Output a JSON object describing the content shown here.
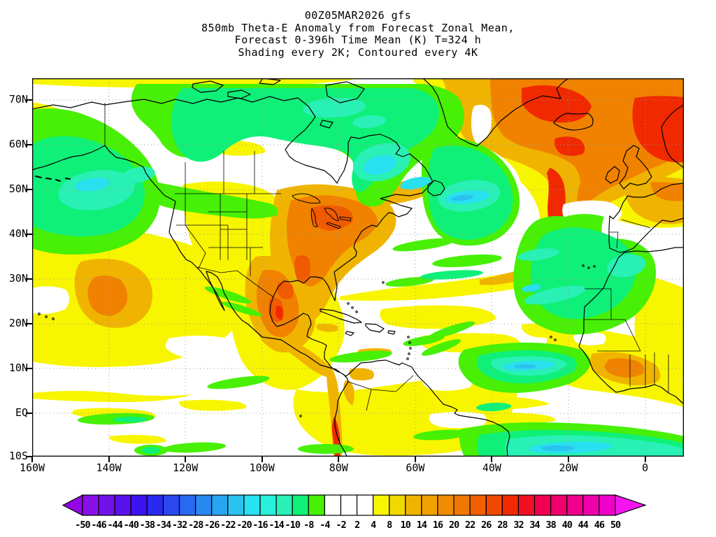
{
  "title": {
    "line1": "00Z05MAR2026 gfs",
    "line2": "850mb Theta-E Anomaly from Forecast Zonal Mean,",
    "line3": "Forecast 0-396h Time Mean (K) T=324 h",
    "line4": "Shading every 2K; Contoured every 4K"
  },
  "map": {
    "lat_labels": [
      "70N",
      "60N",
      "50N",
      "40N",
      "30N",
      "20N",
      "10N",
      "EQ",
      "10S"
    ],
    "lon_labels": [
      "160W",
      "140W",
      "120W",
      "100W",
      "80W",
      "60W",
      "40W",
      "20W",
      "0"
    ]
  },
  "colorbar": {
    "labels": [
      "-50",
      "-46",
      "-44",
      "-40",
      "-38",
      "-34",
      "-32",
      "-28",
      "-26",
      "-22",
      "-20",
      "-16",
      "-14",
      "-10",
      "-8",
      "-4",
      "-2",
      "2",
      "4",
      "8",
      "10",
      "14",
      "16",
      "20",
      "22",
      "26",
      "28",
      "32",
      "34",
      "38",
      "40",
      "44",
      "46",
      "50"
    ],
    "colors": [
      "#9406e6",
      "#8a0fe6",
      "#7211e8",
      "#5812ec",
      "#3c13f0",
      "#2929f0",
      "#2948f0",
      "#2968f0",
      "#2987f0",
      "#29a5f0",
      "#29c3f0",
      "#29e1f0",
      "#29f0dc",
      "#29f0b4",
      "#0ff078",
      "#47f005",
      "#ffffff",
      "#ffffff",
      "#ffffff",
      "#f8f500",
      "#f0d800",
      "#f0b400",
      "#f0a000",
      "#f08c00",
      "#f07800",
      "#f06000",
      "#f04800",
      "#f02900",
      "#f00f24",
      "#f00052",
      "#f0006e",
      "#f0008c",
      "#f000aa",
      "#f000c8",
      "#f514f0"
    ]
  },
  "chart_data": {
    "type": "heatmap",
    "title": "00Z05MAR2026 gfs — 850mb Theta-E Anomaly from Forecast Zonal Mean, Forecast 0-396h Time Mean (K) T=324 h — Shading every 2K; Contoured every 4K",
    "model": "gfs",
    "init_time": "00Z05MAR2026",
    "field": "850mb Theta-E Anomaly from Forecast Zonal Mean",
    "units": "K",
    "time_mean": "Forecast 0-396h",
    "tau": "T=324 h",
    "shading_interval_K": 2,
    "contour_interval_K": 4,
    "projection": "latlon",
    "lat_ticks": [
      "70N",
      "60N",
      "50N",
      "40N",
      "30N",
      "20N",
      "10N",
      "EQ",
      "10S"
    ],
    "lon_ticks": [
      "160W",
      "140W",
      "120W",
      "100W",
      "80W",
      "60W",
      "40W",
      "20W",
      "0"
    ],
    "lat_range": [
      "10S",
      "75N"
    ],
    "lon_range": [
      "160W",
      "10E"
    ],
    "grid": "dotted gray every 10 lat / 20 lon",
    "colorbar_levels": [
      -50,
      -46,
      -44,
      -40,
      -38,
      -34,
      -32,
      -28,
      -26,
      -22,
      -20,
      -16,
      -14,
      -10,
      -8,
      -4,
      -2,
      2,
      4,
      8,
      10,
      14,
      16,
      20,
      22,
      26,
      28,
      32,
      34,
      38,
      40,
      44,
      46,
      50
    ],
    "features": [
      {
        "region": "Alaska, western & central Canada, Hudson Bay",
        "anomaly_K": "-6 to -12",
        "shade": "green"
      },
      {
        "region": "Gulf of Alaska / Northeast Pacific",
        "anomaly_K": "-8 to -16",
        "shade": "green-teal with cyan core"
      },
      {
        "region": "Labrador / NE Quebec",
        "anomaly_K": "-12 to -18",
        "shade": "teal-cyan patch"
      },
      {
        "region": "Eastern US, Great Lakes, Northeast US",
        "anomaly_K": "+8 to +20",
        "shade": "orange with red-orange core"
      },
      {
        "region": "Gulf of Mexico and Mexico",
        "anomaly_K": "+8 to +20",
        "shade": "orange"
      },
      {
        "region": "North Atlantic from Greenland/Iceland to Scandinavia",
        "anomaly_K": "+12 to +32",
        "shade": "orange-red, red max near Norway and north of Iceland"
      },
      {
        "region": "Central North Atlantic south of Greenland",
        "anomaly_K": "-8 to -18",
        "shade": "green wedge with cyan core near 50N 40W"
      },
      {
        "region": "Northwest Africa (Morocco, Algeria, Mauritania) and adjacent Atlantic",
        "anomaly_K": "-6 to -14",
        "shade": "green with teal streaks"
      },
      {
        "region": "Gulf of Guinea coast (Ghana-Nigeria)",
        "anomaly_K": "+8 to +16",
        "shade": "orange"
      },
      {
        "region": "Subtropical NE Pacific near Hawaii",
        "anomaly_K": "+6 to +14",
        "shade": "yellow-orange"
      },
      {
        "region": "Tropical Atlantic 5-15N",
        "anomaly_K": "-8 to -18",
        "shade": "teal tongue with cyan core"
      },
      {
        "region": "Andes / Peru coast",
        "anomaly_K": "+8 to +28",
        "shade": "narrow orange-red streak"
      },
      {
        "region": "Equatorial South Atlantic near 5-10S",
        "anomaly_K": "-8 to -20",
        "shade": "teal band with cyan core"
      },
      {
        "region": "Subtropical oceans elsewhere",
        "anomaly_K": "-4 to +6",
        "shade": "white/yellow/green patchwork"
      }
    ]
  }
}
